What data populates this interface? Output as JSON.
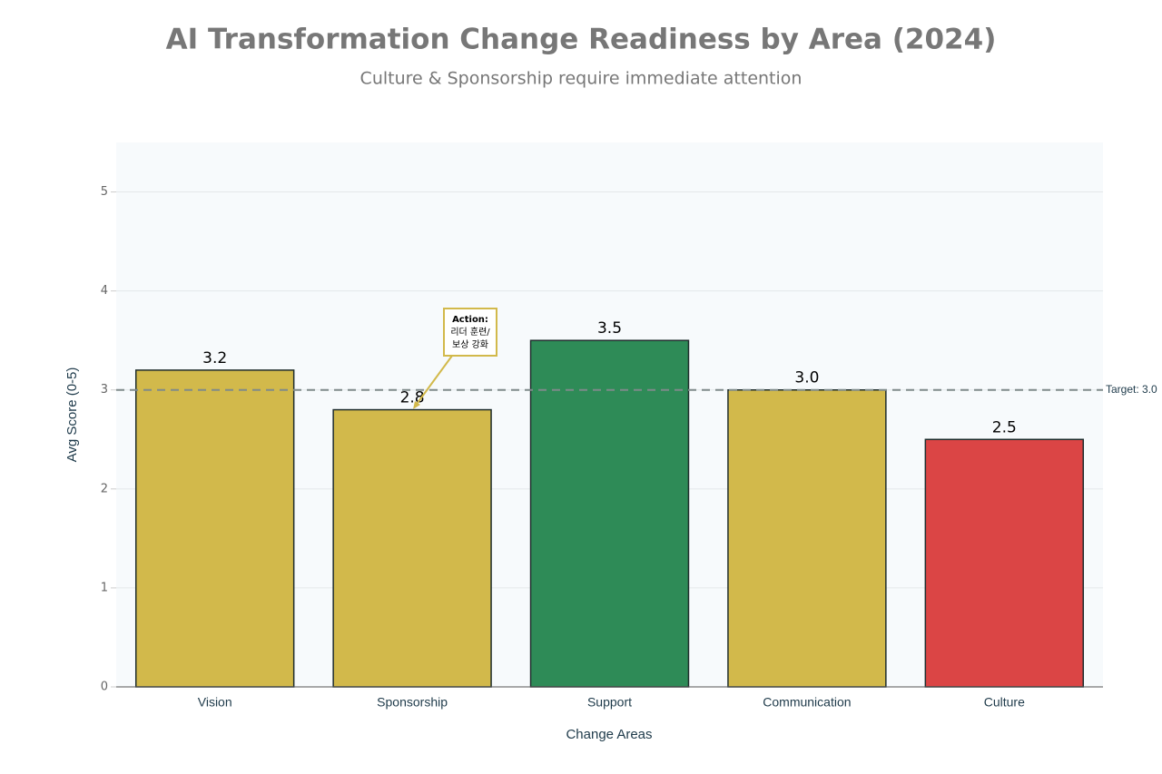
{
  "chart_data": {
    "type": "bar",
    "title": "AI Transformation Change Readiness by Area (2024)",
    "subtitle": "Culture & Sponsorship require immediate attention",
    "x_label": "Change Areas",
    "y_label": "Avg Score (0-5)",
    "categories": [
      "Vision",
      "Sponsorship",
      "Support",
      "Communication",
      "Culture"
    ],
    "values": [
      3.2,
      2.8,
      3.5,
      3.0,
      2.5
    ],
    "value_labels": [
      "3.2",
      "2.8",
      "3.5",
      "3.0",
      "2.5"
    ],
    "colors": [
      "#d2b94b",
      "#d2b94b",
      "#2e8b57",
      "#d2b94b",
      "#db4545"
    ],
    "ylim": [
      0,
      5.5
    ],
    "yticks": [
      0,
      1,
      2,
      3,
      4,
      5
    ],
    "grid": true,
    "target": {
      "value": 3,
      "label": "Target: 3.0"
    },
    "annotation": {
      "lines": [
        "Action:",
        "리더 훈련/",
        "보상 강화"
      ]
    }
  }
}
